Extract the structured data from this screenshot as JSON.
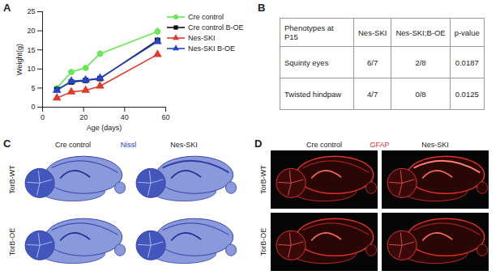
{
  "panel_labels": [
    "A",
    "B",
    "C",
    "D"
  ],
  "chart_data": {
    "type": "line",
    "x_label": "Age (days)",
    "y_label": "Weight(g)",
    "x": [
      7,
      14,
      21,
      28,
      56
    ],
    "xlim": [
      0,
      60
    ],
    "xticks": [
      0,
      20,
      40,
      60
    ],
    "ylim": [
      0,
      25
    ],
    "yticks": [
      0,
      5,
      10,
      15,
      20,
      25
    ],
    "legend": "right",
    "series": [
      {
        "name": "Cre control",
        "color": "#66e855",
        "marker": "circle",
        "values": [
          5.0,
          9.2,
          10.3,
          14.0,
          19.8
        ],
        "errors": [
          0.3,
          0.4,
          0.5,
          0.8,
          1.0
        ]
      },
      {
        "name": "Cre control B-OE",
        "color": "#111111",
        "marker": "square",
        "values": [
          4.6,
          6.6,
          7.0,
          7.5,
          17.5
        ],
        "errors": [
          0.2,
          0.3,
          0.3,
          0.3,
          0.6
        ]
      },
      {
        "name": "Nes-SKI",
        "color": "#e03a2a",
        "marker": "triangle",
        "values": [
          2.4,
          4.0,
          4.4,
          5.5,
          13.8
        ],
        "errors": [
          0.2,
          0.2,
          0.2,
          0.2,
          0.3
        ]
      },
      {
        "name": "Nes-SKI B-OE",
        "color": "#2546c8",
        "marker": "triangle",
        "values": [
          4.4,
          6.8,
          7.1,
          7.6,
          17.2
        ],
        "errors": [
          0.2,
          0.3,
          0.3,
          0.3,
          0.5
        ]
      }
    ]
  },
  "table": {
    "header": [
      "Phenotypes at P15",
      "Nes-SKI",
      "Nes-SKI;B-OE",
      "p-value"
    ],
    "rows": [
      [
        "Squinty eyes",
        "6/7",
        "2/8",
        "0.0187"
      ],
      [
        "Twisted hindpaw",
        "4/7",
        "0/8",
        "0.0125"
      ]
    ]
  },
  "images": [
    {
      "stain": "Nissl",
      "columns": [
        "Cre control",
        "Nes-SKI"
      ],
      "rows": [
        "TorB-WT",
        "TorB-OE"
      ]
    },
    {
      "stain": "GFAP",
      "columns": [
        "Cre control",
        "Nes-SKI"
      ],
      "rows": [
        "TorB-WT",
        "TorB-OE"
      ]
    }
  ]
}
